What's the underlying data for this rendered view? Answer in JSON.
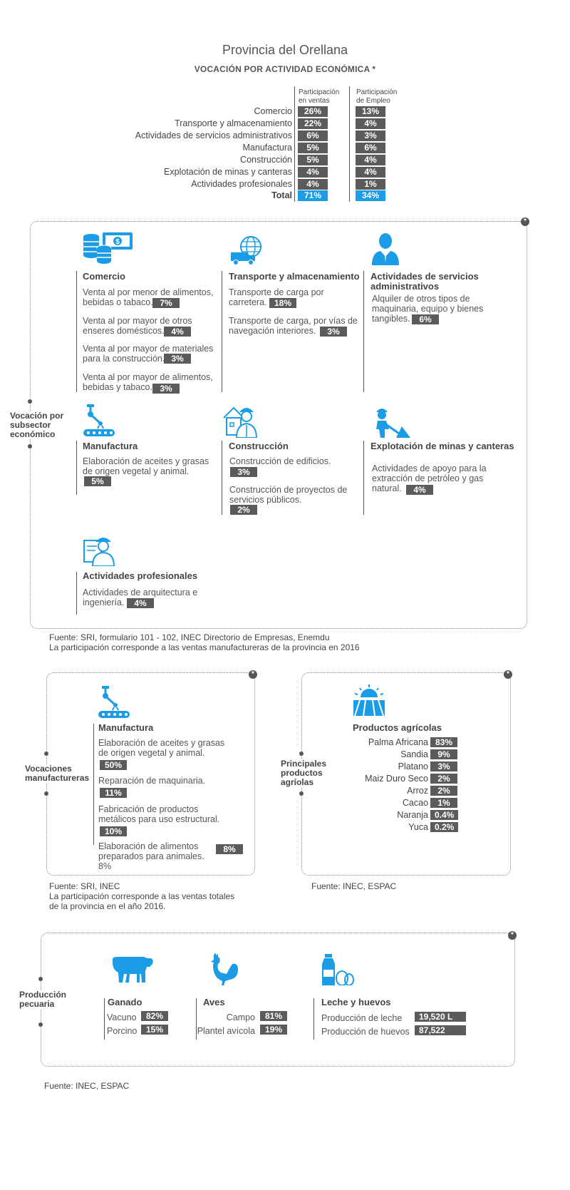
{
  "header": {
    "title": "Provincia del Orellana",
    "subtitle": "VOCACIÓN POR ACTIVIDAD ECONÓMICA *"
  },
  "table": {
    "col_ventas": [
      "Participación",
      "en ventas"
    ],
    "col_empleo": [
      "Participación",
      "de Empleo"
    ],
    "rows": [
      {
        "label": "Comercio",
        "ventas": "26%",
        "empleo": "13%"
      },
      {
        "label": "Transporte y almacenamiento",
        "ventas": "22%",
        "empleo": "4%"
      },
      {
        "label": "Actividades de servicios administrativos",
        "ventas": "6%",
        "empleo": "3%"
      },
      {
        "label": "Manufactura",
        "ventas": "5%",
        "empleo": "6%"
      },
      {
        "label": "Construcción",
        "ventas": "5%",
        "empleo": "4%"
      },
      {
        "label": "Explotación de minas y canteras",
        "ventas": "4%",
        "empleo": "4%"
      },
      {
        "label": "Actividades profesionales",
        "ventas": "4%",
        "empleo": "1%"
      }
    ],
    "total": {
      "label": "Total",
      "ventas": "71%",
      "empleo": "34%"
    }
  },
  "subsector": {
    "side_label": [
      "Vocación por",
      "subsector",
      "económico"
    ],
    "corner": "*",
    "comercio": {
      "title": "Comercio",
      "items": [
        {
          "text": [
            "Venta al por menor de alimentos,",
            "bebidas o tabaco."
          ],
          "value": "7%"
        },
        {
          "text": [
            "Venta al por mayor de otros",
            "enseres domésticos."
          ],
          "value": "4%"
        },
        {
          "text": [
            "Venta al por mayor de materiales",
            "para la construcción."
          ],
          "value": "3%"
        },
        {
          "text": [
            "Venta al por mayor de alimentos,",
            "bebidas y tabaco."
          ],
          "value": "3%"
        }
      ]
    },
    "transporte": {
      "title": "Transporte y almacenamiento",
      "items": [
        {
          "text": [
            "Transporte de carga por",
            "carretera."
          ],
          "value": "18%"
        },
        {
          "text": [
            "Transporte de carga, por vías de",
            "navegación interiores."
          ],
          "value": "3%"
        }
      ]
    },
    "servicios": {
      "title": [
        "Actividades de servicios",
        "administrativos"
      ],
      "items": [
        {
          "text": [
            "Alquiler de otros tipos de",
            "maquinaria, equipo y bienes",
            "tangibles."
          ],
          "value": "6%"
        }
      ]
    },
    "manufactura": {
      "title": "Manufactura",
      "items": [
        {
          "text": [
            "Elaboración de aceites y grasas",
            "de origen vegetal y animal."
          ],
          "value": "5%"
        }
      ]
    },
    "construccion": {
      "title": "Construcción",
      "items": [
        {
          "text": [
            "Construcción de edificios."
          ],
          "value": "3%"
        },
        {
          "text": [
            "Construcción de proyectos de",
            "servicios públicos."
          ],
          "value": "2%"
        }
      ]
    },
    "minas": {
      "title": "Explotación de minas y canteras",
      "items": [
        {
          "text": [
            "Actividades de apoyo para la",
            "extracción de petróleo y gas",
            "natural."
          ],
          "value": "4%"
        }
      ]
    },
    "profesionales": {
      "title": "Actividades profesionales",
      "items": [
        {
          "text": [
            "Actividades de arquitectura e",
            "ingeniería."
          ],
          "value": "4%"
        }
      ]
    },
    "source": [
      "Fuente: SRI, formulario 101 - 102, INEC Directorio de Empresas, Enemdu",
      "La participación corresponde a las ventas manufactureras de la provincia en 2016"
    ]
  },
  "manufactureras": {
    "side_label": [
      "Vocaciones",
      "manufactureras"
    ],
    "corner": "*",
    "title": "Manufactura",
    "items": [
      {
        "text": [
          "Elaboración de aceites y grasas",
          "de origen vegetal y animal."
        ],
        "value": "50%"
      },
      {
        "text": [
          "Reparación de maquinaria."
        ],
        "value": "11%"
      },
      {
        "text": [
          "Fabricación de productos",
          "metálicos para uso estructural."
        ],
        "value": "10%"
      },
      {
        "text": [
          "Elaboración de alimentos",
          "preparados para animales.",
          "8%"
        ],
        "value": "8%"
      }
    ],
    "source": [
      "Fuente: SRI, INEC",
      "La participación corresponde a las ventas totales",
      "de la provincia en el año 2016."
    ]
  },
  "agricolas": {
    "side_label": [
      "Principales",
      "productos",
      "agríolas"
    ],
    "corner": "*",
    "title": "Productos agrícolas",
    "items": [
      {
        "label": "Palma Africana",
        "value": "83%"
      },
      {
        "label": "Sandia",
        "value": "9%"
      },
      {
        "label": "Platano",
        "value": "3%"
      },
      {
        "label": "Maiz Duro Seco",
        "value": "2%"
      },
      {
        "label": "Arroz",
        "value": "2%"
      },
      {
        "label": "Cacao",
        "value": "1%"
      },
      {
        "label": "Naranja",
        "value": "0.4%"
      },
      {
        "label": "Yuca",
        "value": "0.2%"
      }
    ],
    "source": "Fuente: INEC, ESPAC"
  },
  "pecuaria": {
    "side_label": [
      "Producción",
      "pecuaria"
    ],
    "corner": "*",
    "ganado": {
      "title": "Ganado",
      "items": [
        {
          "label": "Vacuno",
          "value": "82%"
        },
        {
          "label": "Porcino",
          "value": "15%"
        }
      ]
    },
    "aves": {
      "title": "Aves",
      "items": [
        {
          "label": "Campo",
          "value": "81%"
        },
        {
          "label": "Plantel avícola",
          "value": "19%"
        }
      ]
    },
    "leche": {
      "title": "Leche y huevos",
      "items": [
        {
          "label": "Producción de leche",
          "value": "19,520 L"
        },
        {
          "label": "Producción de huevos",
          "value": "87,522"
        }
      ]
    },
    "source": "Fuente: INEC, ESPAC"
  },
  "colors": {
    "accent": "#1b9ce6",
    "pill": "#5b5b5b",
    "text": "#444444"
  }
}
